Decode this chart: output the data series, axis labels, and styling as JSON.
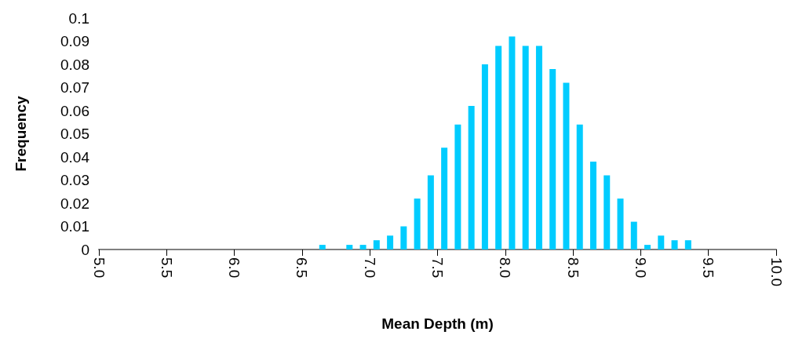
{
  "chart_data": {
    "type": "bar",
    "xlabel": "Mean Depth (m)",
    "ylabel": "Frequency",
    "color": "#00ccff",
    "x": [
      6.65,
      6.75,
      6.85,
      6.95,
      7.05,
      7.15,
      7.25,
      7.35,
      7.45,
      7.55,
      7.65,
      7.75,
      7.85,
      7.95,
      8.05,
      8.15,
      8.25,
      8.35,
      8.45,
      8.55,
      8.65,
      8.75,
      8.85,
      8.95,
      9.05,
      9.15,
      9.25,
      9.35
    ],
    "values": [
      0.002,
      0,
      0.002,
      0.002,
      0.004,
      0.006,
      0.01,
      0.022,
      0.032,
      0.044,
      0.054,
      0.062,
      0.08,
      0.088,
      0.092,
      0.088,
      0.088,
      0.078,
      0.072,
      0.054,
      0.038,
      0.032,
      0.022,
      0.012,
      0.002,
      0.006,
      0.004,
      0.004
    ],
    "xlim": [
      5,
      10
    ],
    "xticks": [
      {
        "value": 5,
        "label": "5.0"
      },
      {
        "value": 5.5,
        "label": "5.5"
      },
      {
        "value": 6,
        "label": "6.0"
      },
      {
        "value": 6.5,
        "label": "6.5"
      },
      {
        "value": 7,
        "label": "7.0"
      },
      {
        "value": 7.5,
        "label": "7.5"
      },
      {
        "value": 8,
        "label": "8.0"
      },
      {
        "value": 8.5,
        "label": "8.5"
      },
      {
        "value": 9,
        "label": "9.0"
      },
      {
        "value": 9.5,
        "label": "9.5"
      },
      {
        "value": 10,
        "label": "10.0"
      }
    ],
    "ylim": [
      0,
      0.1
    ],
    "yticks": [
      0,
      0.01,
      0.02,
      0.03,
      0.04,
      0.05,
      0.06,
      0.07,
      0.08,
      0.09,
      0.1
    ],
    "grid": false
  }
}
